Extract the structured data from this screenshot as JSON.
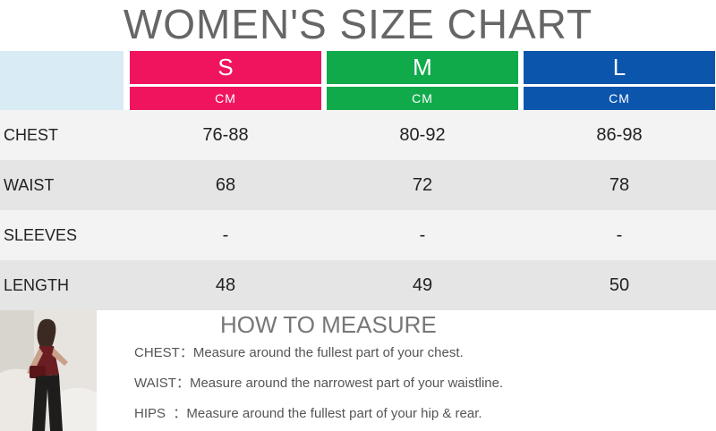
{
  "title": "WOMEN'S SIZE CHART",
  "colors": {
    "s": "#f0145f",
    "m": "#10aa4a",
    "l": "#0b55ad",
    "blank_header": "#d9ecf5",
    "row_light": "#f3f3f3",
    "row_dark": "#e5e5e5"
  },
  "sizes": [
    {
      "name": "S",
      "unit": "CM"
    },
    {
      "name": "M",
      "unit": "CM"
    },
    {
      "name": "L",
      "unit": "CM"
    }
  ],
  "rows": [
    {
      "label": "CHEST",
      "values": [
        "76-88",
        "80-92",
        "86-98"
      ]
    },
    {
      "label": "WAIST",
      "values": [
        "68",
        "72",
        "78"
      ]
    },
    {
      "label": "SLEEVES",
      "values": [
        "-",
        "-",
        "-"
      ]
    },
    {
      "label": "LENGTH",
      "values": [
        "48",
        "49",
        "50"
      ]
    }
  ],
  "how_to_measure": {
    "title": "HOW TO MEASURE",
    "items": [
      {
        "key": "CHEST：",
        "text": "Measure around the fullest part of your chest."
      },
      {
        "key": "WAIST：",
        "text": "Measure around the narrowest part of your waistline."
      },
      {
        "key": "HIPS  ：",
        "text": "Measure around the fullest part of your hip & rear."
      }
    ]
  }
}
